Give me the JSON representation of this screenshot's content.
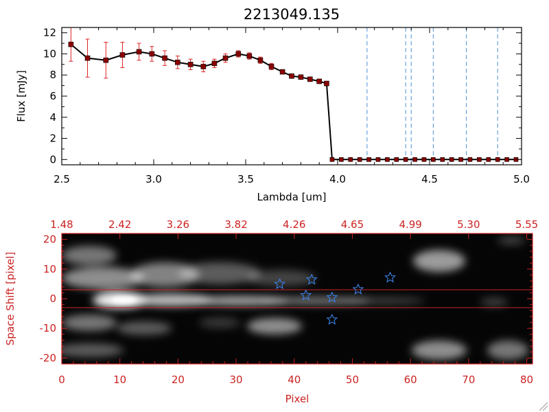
{
  "chart_data": [
    {
      "type": "line",
      "title": "2213049.135",
      "xlabel": "Lambda [um]",
      "ylabel": "Flux [mJy]",
      "xlim": [
        2.5,
        5.0
      ],
      "ylim": [
        -0.5,
        12.5
      ],
      "x_ticks": [
        "2.5",
        "3.0",
        "3.5",
        "4.0",
        "4.5",
        "5.0"
      ],
      "y_ticks": [
        "0",
        "2",
        "4",
        "6",
        "8",
        "10",
        "12"
      ],
      "line_color": "#000000",
      "marker_color": "#8b0000",
      "errorbar_color": "#dd2222",
      "vline_color": "#4a90d9",
      "vlines": [
        4.16,
        4.37,
        4.4,
        4.52,
        4.7,
        4.87
      ],
      "series": [
        {
          "x": [
            2.55,
            2.64,
            2.74,
            2.83,
            2.92,
            2.99,
            3.06,
            3.13,
            3.2,
            3.27,
            3.33,
            3.39,
            3.46,
            3.52,
            3.58,
            3.64,
            3.7,
            3.75,
            3.8,
            3.85,
            3.9,
            3.94
          ],
          "y": [
            10.9,
            9.6,
            9.4,
            9.9,
            10.2,
            10.0,
            9.6,
            9.2,
            9.0,
            8.8,
            9.1,
            9.6,
            10.0,
            9.8,
            9.4,
            8.8,
            8.3,
            7.9,
            7.8,
            7.6,
            7.4,
            7.2
          ],
          "err": [
            1.6,
            1.8,
            1.7,
            1.2,
            0.8,
            0.7,
            0.7,
            0.6,
            0.5,
            0.5,
            0.4,
            0.4,
            0.3,
            0.3,
            0.3,
            0.3,
            0.2,
            0.2,
            0.2,
            0.2,
            0.2,
            0.2
          ]
        },
        {
          "x": [
            3.97,
            4.02,
            4.07,
            4.12,
            4.17,
            4.22,
            4.27,
            4.32,
            4.37,
            4.42,
            4.47,
            4.52,
            4.57,
            4.62,
            4.67,
            4.72,
            4.77,
            4.82,
            4.87,
            4.92,
            4.97
          ],
          "y": [
            0,
            0,
            0,
            0,
            0,
            0,
            0,
            0,
            0,
            0,
            0,
            0,
            0,
            0,
            0,
            0,
            0,
            0,
            0,
            0,
            0
          ]
        }
      ],
      "drop_line": {
        "x": [
          3.94,
          3.97
        ],
        "y": [
          7.2,
          0
        ]
      }
    },
    {
      "type": "heatmap",
      "xlabel": "Pixel",
      "ylabel": "Space Shift [pixel]",
      "xlim": [
        0,
        81
      ],
      "ylim": [
        -22,
        22
      ],
      "x_ticks": [
        "0",
        "10",
        "20",
        "30",
        "40",
        "50",
        "60",
        "70",
        "80"
      ],
      "y_ticks": [
        "-20",
        "-10",
        "0",
        "10",
        "20"
      ],
      "top_ticks": [
        "1.48",
        "2.42",
        "3.26",
        "3.82",
        "4.26",
        "4.65",
        "4.99",
        "5.30",
        "5.55"
      ],
      "top_tick_positions": [
        0,
        10,
        20,
        30,
        40,
        50,
        60,
        70,
        80
      ],
      "axis_color": "#cc2222",
      "hlines": [
        3,
        -3
      ],
      "star_color": "#3a7fe0",
      "stars": [
        {
          "x": 37.5,
          "y": 5
        },
        {
          "x": 42.0,
          "y": 1.2
        },
        {
          "x": 43.0,
          "y": 6.5
        },
        {
          "x": 46.5,
          "y": 0.5
        },
        {
          "x": 46.5,
          "y": -7
        },
        {
          "x": 51.0,
          "y": 3.2
        },
        {
          "x": 56.5,
          "y": 7.2
        }
      ]
    }
  ]
}
